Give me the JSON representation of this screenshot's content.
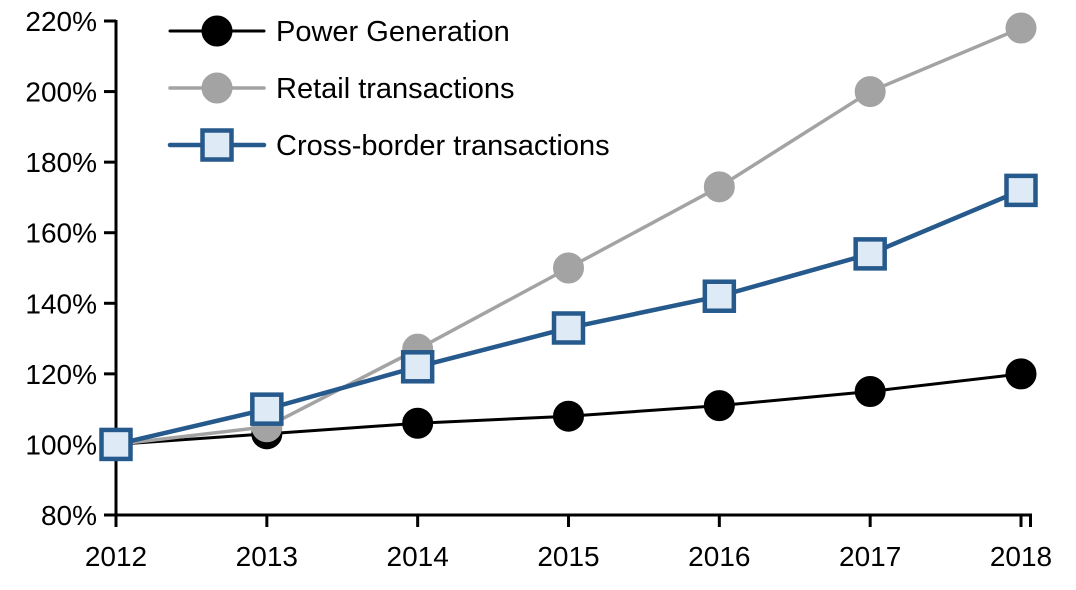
{
  "chart_data": {
    "type": "line",
    "title": "",
    "xlabel": "",
    "ylabel": "",
    "categories": [
      "2012",
      "2013",
      "2014",
      "2015",
      "2016",
      "2017",
      "2018"
    ],
    "y_axis": {
      "min": 80,
      "max": 220,
      "tick_step": 20,
      "tick_values": [
        80,
        100,
        120,
        140,
        160,
        180,
        200,
        220
      ],
      "tick_labels": [
        "80%",
        "100%",
        "120%",
        "140%",
        "160%",
        "180%",
        "200%",
        "220%"
      ]
    },
    "grid": false,
    "legend_position": "top-left-inside",
    "series": [
      {
        "name": "Power Generation",
        "color": "#000000",
        "line_width": 3,
        "marker": "circle",
        "marker_fill": "#000000",
        "marker_stroke": "#000000",
        "values": [
          100,
          103,
          106,
          108,
          111,
          115,
          120
        ]
      },
      {
        "name": "Retail transactions",
        "color": "#A3A3A3",
        "line_width": 3.5,
        "marker": "circle",
        "marker_fill": "#A3A3A3",
        "marker_stroke": "#A3A3A3",
        "values": [
          100,
          105,
          127,
          150,
          173,
          200,
          218
        ]
      },
      {
        "name": "Cross-border transactions",
        "color": "#26598C",
        "line_width": 4.5,
        "marker": "square",
        "marker_fill": "#DEEAF6",
        "marker_stroke": "#26598C",
        "values": [
          100,
          110,
          122,
          133,
          142,
          154,
          172
        ]
      }
    ],
    "axis_color": "#000000"
  }
}
